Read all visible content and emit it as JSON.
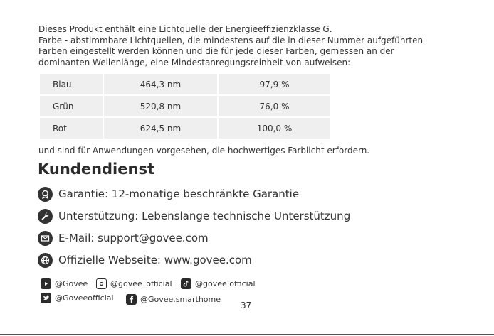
{
  "intro_lines": [
    "Dieses Produkt enthält eine Lichtquelle der Energieeffizienzklasse G.",
    "Farbe - abstimmbare Lichtquellen, die mindestens auf die in dieser Nummer aufgeführten",
    "Farben eingestellt werden können und die für jede dieser Farben, gemessen an der",
    "dominanten Wellenlänge, eine Mindestanregungsreinheit von aufweisen:"
  ],
  "table": {
    "rows": [
      {
        "color": "Blau",
        "wavelength": "464,3 nm",
        "purity": "97,9 %"
      },
      {
        "color": "Grün",
        "wavelength": "520,8 nm",
        "purity": "76,0 %"
      },
      {
        "color": "Rot",
        "wavelength": "624,5 nm",
        "purity": "100,0 %"
      }
    ]
  },
  "outro": "und sind für Anwendungen vorgesehen, die hochwertiges Farblicht erfordern.",
  "heading": "Kundendienst",
  "service_items": [
    {
      "icon": "warranty-badge-icon",
      "text": "Garantie: 12-monatige beschränkte Garantie"
    },
    {
      "icon": "wrench-icon",
      "text": "Unterstützung: Lebenslange technische Unterstützung"
    },
    {
      "icon": "envelope-icon",
      "text": "E-Mail: support@govee.com"
    },
    {
      "icon": "globe-icon",
      "text": "Offizielle Webseite: www.govee.com"
    }
  ],
  "social": {
    "youtube": "@Govee",
    "instagram": "@govee_official",
    "tiktok": "@govee.official",
    "twitter": "@Goveeofficial",
    "facebook": "@Govee.smarthome"
  },
  "page_number": "37"
}
